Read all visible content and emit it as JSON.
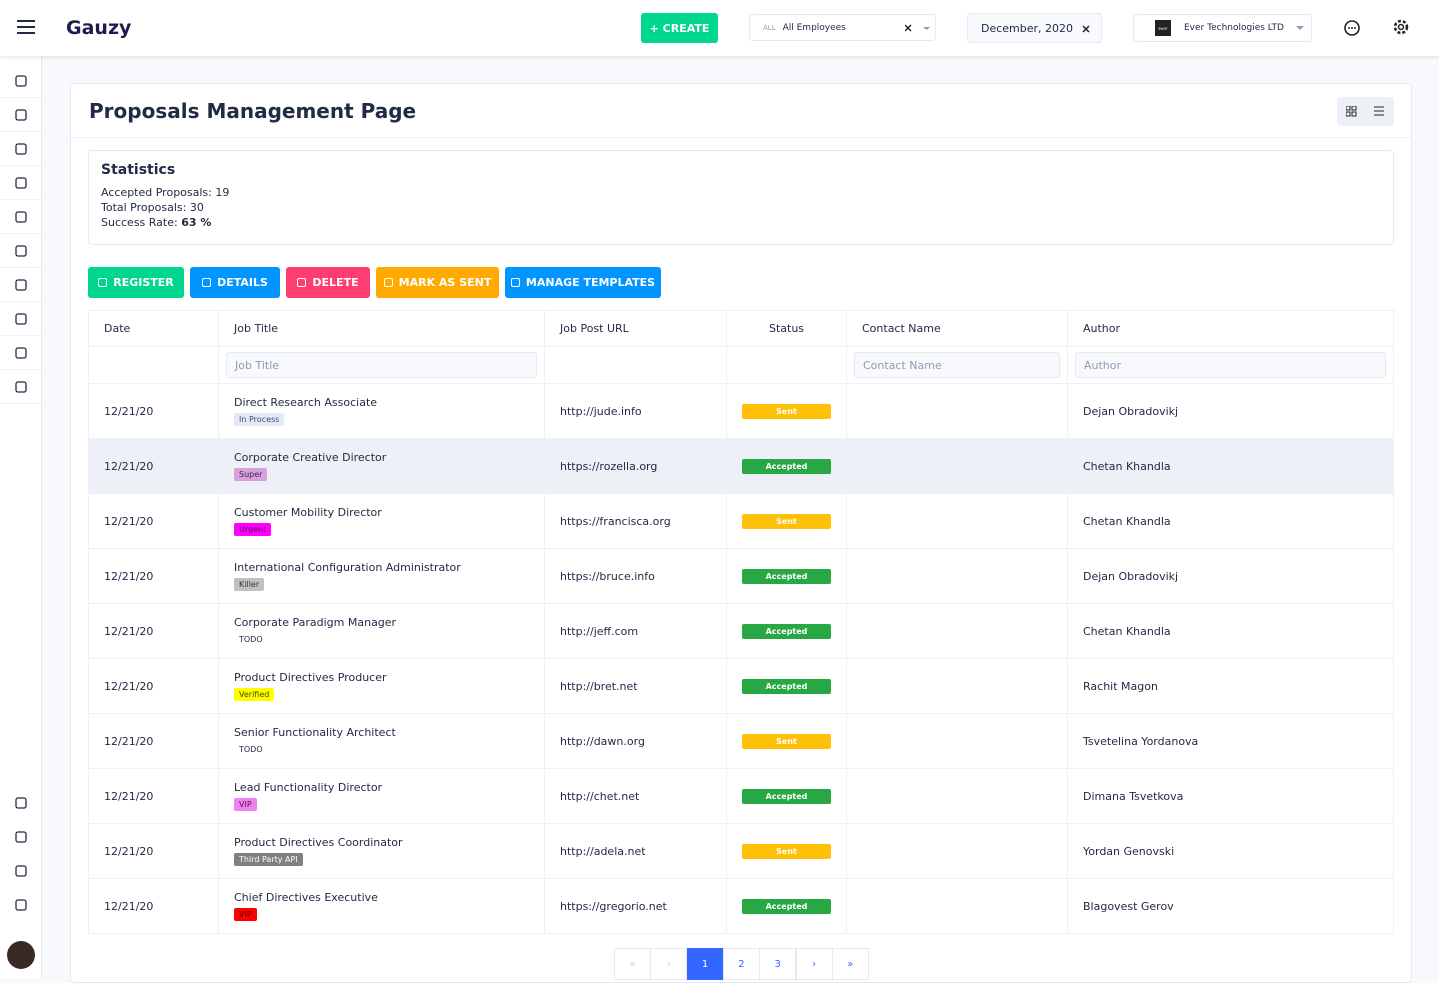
{
  "header": {
    "logo": "Gauzy",
    "create": "+ CREATE",
    "employee_filter": {
      "prefix": "ALL",
      "label": "All Employees"
    },
    "date": "December, 2020",
    "organization": {
      "badge": "ever",
      "name": "Ever Technologies LTD"
    }
  },
  "page": {
    "title": "Proposals Management Page"
  },
  "statistics": {
    "title": "Statistics",
    "accepted": {
      "label": "Accepted Proposals:",
      "value": 19
    },
    "total": {
      "label": "Total Proposals:",
      "value": 30
    },
    "success_rate": {
      "label": "Success Rate:",
      "value": "63 %"
    }
  },
  "actions": [
    {
      "label": "REGISTER",
      "color": "#00d68f"
    },
    {
      "label": "DETAILS",
      "color": "#0095ff"
    },
    {
      "label": "DELETE",
      "color": "#ff3d71"
    },
    {
      "label": "MARK AS SENT",
      "color": "#ffaa00"
    },
    {
      "label": "MANAGE TEMPLATES",
      "color": "#0095ff"
    }
  ],
  "table": {
    "columns": [
      "Date",
      "Job Title",
      "Job Post URL",
      "Status",
      "Contact Name",
      "Author"
    ],
    "filters": {
      "job_title": "Job Title",
      "contact_name": "Contact Name",
      "author": "Author"
    },
    "rows": [
      {
        "date": "12/21/20",
        "title": "Direct Research Associate",
        "tag": {
          "label": "In Process",
          "color": "#e4e9f7",
          "text": "#3c4a6b"
        },
        "url": "http://jude.info",
        "status": {
          "label": "Sent",
          "color": "#ffc107"
        },
        "author": "Dejan Obradovikj"
      },
      {
        "date": "12/21/20",
        "title": "Corporate Creative Director",
        "tag": {
          "label": "Super",
          "color": "#d8a0dc",
          "text": "#3c2a40"
        },
        "url": "https://rozella.org",
        "status": {
          "label": "Accepted",
          "color": "#28a745"
        },
        "author": "Chetan Khandla"
      },
      {
        "date": "12/21/20",
        "title": "Customer Mobility Director",
        "tag": {
          "label": "Urgent",
          "color": "#ff00ff",
          "text": "#5a005a"
        },
        "url": "https://francisca.org",
        "status": {
          "label": "Sent",
          "color": "#ffc107"
        },
        "author": "Chetan Khandla"
      },
      {
        "date": "12/21/20",
        "title": "International Configuration Administrator",
        "tag": {
          "label": "Killer",
          "color": "#c0c0c0",
          "text": "#333333"
        },
        "url": "https://bruce.info",
        "status": {
          "label": "Accepted",
          "color": "#28a745"
        },
        "author": "Dejan Obradovikj"
      },
      {
        "date": "12/21/20",
        "title": "Corporate Paradigm Manager",
        "tag": {
          "label": "TODO",
          "color": "#ffffff",
          "text": "#222b45"
        },
        "url": "http://jeff.com",
        "status": {
          "label": "Accepted",
          "color": "#28a745"
        },
        "author": "Chetan Khandla"
      },
      {
        "date": "12/21/20",
        "title": "Product Directives Producer",
        "tag": {
          "label": "Verified",
          "color": "#ffff00",
          "text": "#4a4a00"
        },
        "url": "http://bret.net",
        "status": {
          "label": "Accepted",
          "color": "#28a745"
        },
        "author": "Rachit Magon"
      },
      {
        "date": "12/21/20",
        "title": "Senior Functionality Architect",
        "tag": {
          "label": "TODO",
          "color": "#ffffff",
          "text": "#222b45"
        },
        "url": "http://dawn.org",
        "status": {
          "label": "Sent",
          "color": "#ffc107"
        },
        "author": "Tsvetelina Yordanova"
      },
      {
        "date": "12/21/20",
        "title": "Lead Functionality Director",
        "tag": {
          "label": "VIP",
          "color": "#ee82ee",
          "text": "#4a1a4a"
        },
        "url": "http://chet.net",
        "status": {
          "label": "Accepted",
          "color": "#28a745"
        },
        "author": "Dimana Tsvetkova"
      },
      {
        "date": "12/21/20",
        "title": "Product Directives Coordinator",
        "tag": {
          "label": "Third Party API",
          "color": "#808080",
          "text": "#ffffff"
        },
        "url": "http://adela.net",
        "status": {
          "label": "Sent",
          "color": "#ffc107"
        },
        "author": "Yordan Genovski"
      },
      {
        "date": "12/21/20",
        "title": "Chief Directives Executive",
        "tag": {
          "label": "VIP",
          "color": "#ff0000",
          "text": "#5a0000"
        },
        "url": "https://gregorio.net",
        "status": {
          "label": "Accepted",
          "color": "#28a745"
        },
        "author": "Blagovest Gerov"
      }
    ]
  },
  "pagination": {
    "first": "«",
    "prev": "‹",
    "pages": [
      1,
      2,
      3
    ],
    "current": 1,
    "next": "›",
    "last": "»"
  }
}
